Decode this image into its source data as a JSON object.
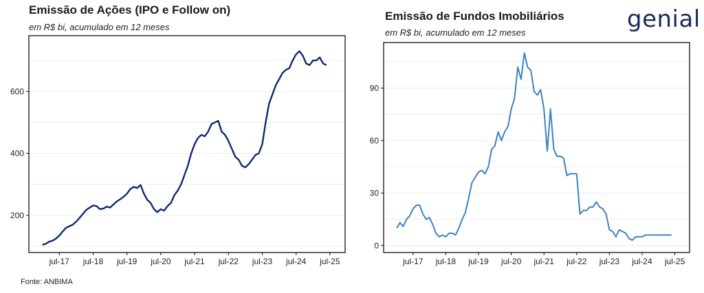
{
  "logo": "genial",
  "source": "Fonte: ANBIMA",
  "chart_data": [
    {
      "type": "line",
      "title": "Emissão de Ações (IPO e Follow on)",
      "subtitle": "em R$ bi, acumulado em 12 meses",
      "color": "#0d2a6e",
      "ylim": [
        80,
        780
      ],
      "y_ticks": [
        200,
        400,
        600
      ],
      "x_ticks": [
        "jul-17",
        "jul-18",
        "jul-19",
        "jul-20",
        "jul-21",
        "jul-22",
        "jul-23",
        "jul-24",
        "jul-25"
      ],
      "x_tick_times": [
        2017.5,
        2018.5,
        2019.5,
        2020.5,
        2021.5,
        2022.5,
        2023.5,
        2024.5,
        2025.5
      ],
      "xlim": [
        2016.6,
        2025.95
      ],
      "grid": true,
      "x": [
        2017.0,
        2017.1,
        2017.2,
        2017.3,
        2017.4,
        2017.5,
        2017.6,
        2017.7,
        2017.8,
        2017.9,
        2018.0,
        2018.1,
        2018.2,
        2018.3,
        2018.4,
        2018.5,
        2018.6,
        2018.7,
        2018.8,
        2018.9,
        2019.0,
        2019.1,
        2019.2,
        2019.3,
        2019.4,
        2019.5,
        2019.6,
        2019.7,
        2019.8,
        2019.9,
        2020.0,
        2020.1,
        2020.2,
        2020.3,
        2020.4,
        2020.5,
        2020.6,
        2020.7,
        2020.8,
        2020.9,
        2021.0,
        2021.1,
        2021.2,
        2021.3,
        2021.4,
        2021.5,
        2021.6,
        2021.7,
        2021.8,
        2021.9,
        2022.0,
        2022.1,
        2022.2,
        2022.3,
        2022.4,
        2022.5,
        2022.6,
        2022.7,
        2022.8,
        2022.9,
        2023.0,
        2023.1,
        2023.2,
        2023.3,
        2023.4,
        2023.5,
        2023.6,
        2023.7,
        2023.8,
        2023.9,
        2024.0,
        2024.1,
        2024.2,
        2024.3,
        2024.4,
        2024.5,
        2024.6,
        2024.7,
        2024.8,
        2024.9,
        2025.0,
        2025.1,
        2025.2,
        2025.3,
        2025.4
      ],
      "y": [
        105,
        108,
        115,
        118,
        125,
        135,
        148,
        160,
        165,
        170,
        180,
        192,
        205,
        218,
        225,
        232,
        230,
        220,
        222,
        228,
        225,
        235,
        245,
        252,
        260,
        270,
        285,
        292,
        288,
        298,
        270,
        250,
        240,
        220,
        210,
        220,
        215,
        230,
        240,
        265,
        280,
        300,
        330,
        360,
        400,
        430,
        450,
        460,
        455,
        470,
        495,
        500,
        505,
        470,
        460,
        440,
        415,
        390,
        380,
        360,
        355,
        365,
        380,
        395,
        400,
        430,
        500,
        560,
        590,
        620,
        640,
        660,
        670,
        675,
        700,
        720,
        730,
        715,
        690,
        685,
        700,
        700,
        710,
        690,
        685
      ]
    },
    {
      "type": "line",
      "title": "Emissão de Fundos Imobiliários",
      "subtitle": "em R$ bi, acumulado em 12 meses",
      "color": "#3a82c4",
      "ylim": [
        -4,
        116
      ],
      "y_ticks": [
        0,
        30,
        60,
        90
      ],
      "x_ticks": [
        "jul-17",
        "jul-18",
        "jul-19",
        "jul-20",
        "jul-21",
        "jul-22",
        "jul-23",
        "jul-24",
        "jul-25"
      ],
      "x_tick_times": [
        2017.5,
        2018.5,
        2019.5,
        2020.5,
        2021.5,
        2022.5,
        2023.5,
        2024.5,
        2025.5
      ],
      "xlim": [
        2016.6,
        2025.95
      ],
      "grid": true,
      "x": [
        2017.0,
        2017.1,
        2017.2,
        2017.3,
        2017.4,
        2017.5,
        2017.6,
        2017.7,
        2017.8,
        2017.9,
        2018.0,
        2018.1,
        2018.2,
        2018.3,
        2018.4,
        2018.5,
        2018.6,
        2018.7,
        2018.8,
        2018.9,
        2019.0,
        2019.1,
        2019.2,
        2019.3,
        2019.4,
        2019.5,
        2019.6,
        2019.7,
        2019.8,
        2019.9,
        2020.0,
        2020.1,
        2020.2,
        2020.3,
        2020.4,
        2020.5,
        2020.6,
        2020.7,
        2020.8,
        2020.9,
        2021.0,
        2021.1,
        2021.2,
        2021.3,
        2021.4,
        2021.5,
        2021.6,
        2021.7,
        2021.8,
        2021.9,
        2022.0,
        2022.1,
        2022.2,
        2022.3,
        2022.4,
        2022.5,
        2022.6,
        2022.7,
        2022.8,
        2022.9,
        2023.0,
        2023.1,
        2023.2,
        2023.3,
        2023.4,
        2023.5,
        2023.6,
        2023.7,
        2023.8,
        2023.9,
        2024.0,
        2024.1,
        2024.2,
        2024.3,
        2024.4,
        2024.5,
        2024.6,
        2024.7,
        2024.8,
        2024.9,
        2025.0,
        2025.1,
        2025.2,
        2025.3,
        2025.4
      ],
      "y": [
        10,
        13,
        11,
        15,
        17,
        21,
        23,
        23,
        18,
        15,
        16,
        12,
        7,
        5,
        6,
        5,
        7,
        7,
        6,
        10,
        15,
        19,
        27,
        36,
        39,
        42,
        43,
        41,
        45,
        55,
        57,
        65,
        60,
        65,
        68,
        78,
        84,
        102,
        95,
        110,
        102,
        100,
        88,
        86,
        89,
        78,
        54,
        78,
        55,
        51,
        51,
        50,
        40,
        41,
        41,
        41,
        18,
        20,
        20,
        22,
        22,
        25,
        22,
        21,
        18,
        9,
        8,
        5,
        9,
        8,
        7,
        4,
        3,
        5,
        5,
        5,
        6,
        6,
        6,
        6,
        6,
        6,
        6,
        6,
        6
      ]
    }
  ]
}
